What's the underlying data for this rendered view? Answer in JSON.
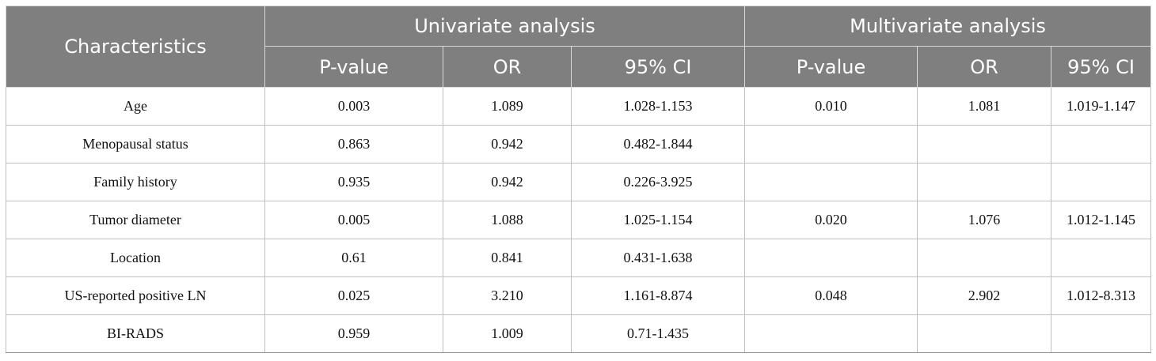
{
  "header": {
    "characteristics": "Characteristics",
    "univariate": "Univariate analysis",
    "multivariate": "Multivariate analysis",
    "sub_columns": [
      "P-value",
      "OR",
      "95% CI",
      "P-value",
      "OR",
      "95% CI"
    ]
  },
  "rows": [
    {
      "label": "Age",
      "cells": [
        "0.003",
        "1.089",
        "1.028-1.153",
        "0.010",
        "1.081",
        "1.019-1.147"
      ]
    },
    {
      "label": "Menopausal status",
      "cells": [
        "0.863",
        "0.942",
        "0.482-1.844",
        "",
        "",
        ""
      ]
    },
    {
      "label": "Family history",
      "cells": [
        "0.935",
        "0.942",
        "0.226-3.925",
        "",
        "",
        ""
      ]
    },
    {
      "label": "Tumor diameter",
      "cells": [
        "0.005",
        "1.088",
        "1.025-1.154",
        "0.020",
        "1.076",
        "1.012-1.145"
      ]
    },
    {
      "label": "Location",
      "cells": [
        "0.61",
        "0.841",
        "0.431-1.638",
        "",
        "",
        ""
      ]
    },
    {
      "label": "US-reported positive LN",
      "cells": [
        "0.025",
        "3.210",
        "1.161-8.874",
        "0.048",
        "2.902",
        "1.012-8.313"
      ]
    },
    {
      "label": "BI-RADS",
      "cells": [
        "0.959",
        "1.009",
        "0.71-1.435",
        "",
        "",
        ""
      ]
    }
  ],
  "colors": {
    "header_bg": "#7f7f7f",
    "header_text": "#ffffff",
    "grid": "#bfbfbf"
  }
}
